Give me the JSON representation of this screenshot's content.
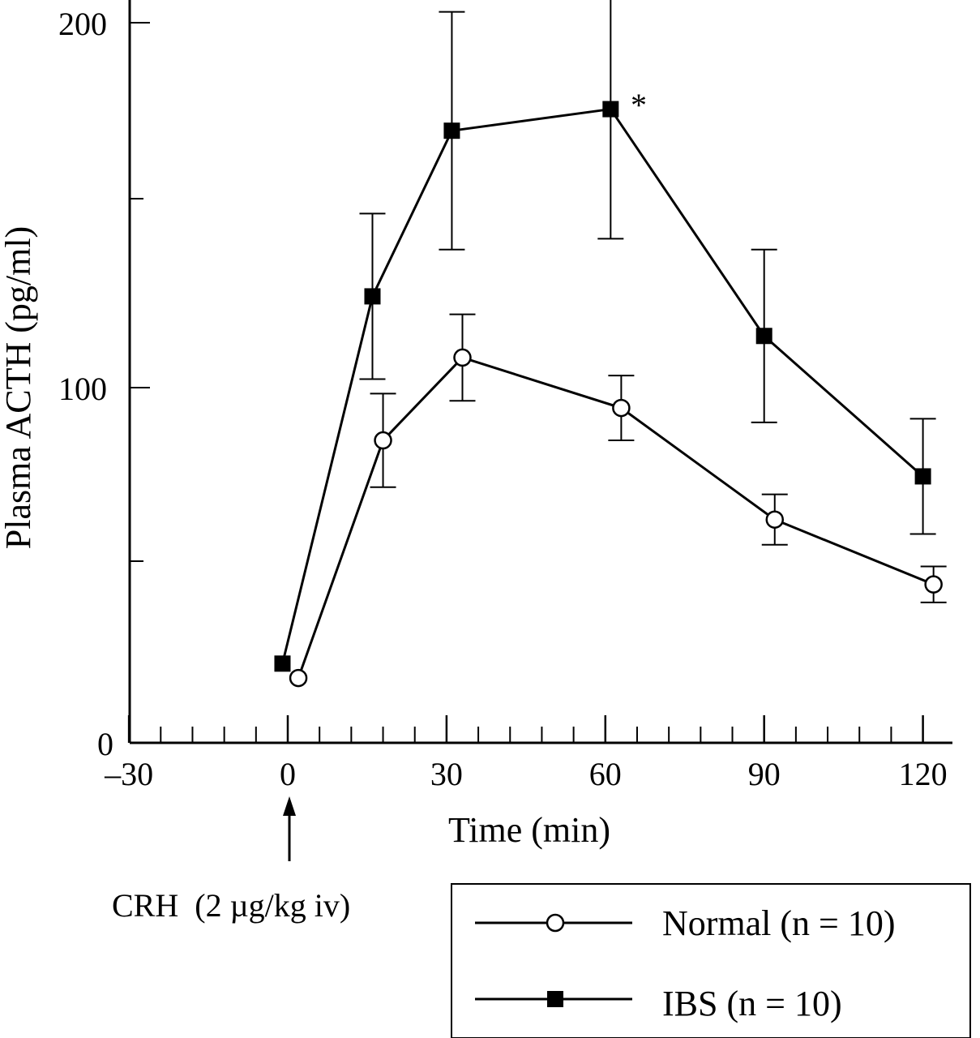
{
  "chart_data": {
    "type": "line",
    "title": "",
    "xlabel": "Time (min)",
    "ylabel": "Plasma ACTH (pg/ml)",
    "xlim": [
      -30,
      125
    ],
    "ylim": [
      0,
      200
    ],
    "x_ticks": [
      -30,
      0,
      30,
      60,
      90,
      120
    ],
    "x_tick_labels": [
      "–30",
      "0",
      "30",
      "60",
      "90",
      "120"
    ],
    "y_tick_labels": [
      "0",
      "100",
      "200"
    ],
    "grid": false,
    "legend_position": "bottom-right",
    "series": [
      {
        "name": "Normal (n = 10)",
        "marker": "open-circle",
        "x": [
          2,
          18,
          33,
          63,
          92,
          122
        ],
        "y": [
          18,
          84,
          107,
          93,
          62,
          44
        ],
        "err": [
          0,
          13,
          12,
          9,
          7,
          5
        ]
      },
      {
        "name": "IBS (n = 10)",
        "marker": "filled-square",
        "x": [
          -1,
          16,
          31,
          61,
          90,
          120
        ],
        "y": [
          22,
          124,
          170,
          176,
          113,
          74
        ],
        "err": [
          0,
          23,
          33,
          36,
          24,
          16
        ]
      }
    ],
    "annotations": {
      "significance": "*",
      "arrow_label": "CRH  (2 µg/kg iv)"
    }
  }
}
